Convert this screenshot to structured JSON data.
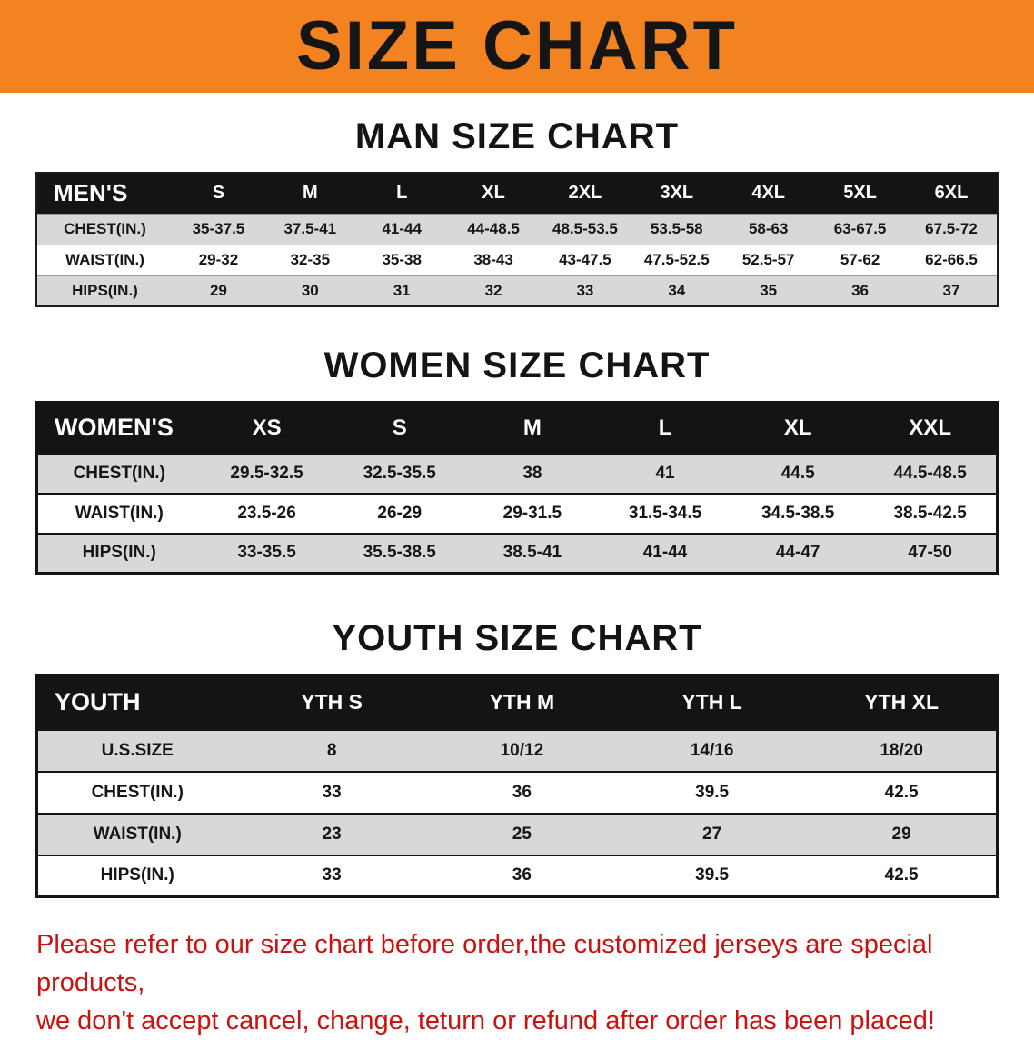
{
  "colors": {
    "banner_bg": "#f28320",
    "notice_text": "#cc1111",
    "header_row_bg": "#141414",
    "stripe_row_bg": "#d8d8d8"
  },
  "banner": {
    "title": "SIZE CHART"
  },
  "men": {
    "title": "MAN SIZE CHART",
    "header": [
      "MEN'S",
      "S",
      "M",
      "L",
      "XL",
      "2XL",
      "3XL",
      "4XL",
      "5XL",
      "6XL"
    ],
    "rows": [
      [
        "CHEST(IN.)",
        "35-37.5",
        "37.5-41",
        "41-44",
        "44-48.5",
        "48.5-53.5",
        "53.5-58",
        "58-63",
        "63-67.5",
        "67.5-72"
      ],
      [
        "WAIST(IN.)",
        "29-32",
        "32-35",
        "35-38",
        "38-43",
        "43-47.5",
        "47.5-52.5",
        "52.5-57",
        "57-62",
        "62-66.5"
      ],
      [
        "HIPS(IN.)",
        "29",
        "30",
        "31",
        "32",
        "33",
        "34",
        "35",
        "36",
        "37"
      ]
    ]
  },
  "women": {
    "title": "WOMEN SIZE CHART",
    "header": [
      "WOMEN'S",
      "XS",
      "S",
      "M",
      "L",
      "XL",
      "XXL"
    ],
    "rows": [
      [
        "CHEST(IN.)",
        "29.5-32.5",
        "32.5-35.5",
        "38",
        "41",
        "44.5",
        "44.5-48.5"
      ],
      [
        "WAIST(IN.)",
        "23.5-26",
        "26-29",
        "29-31.5",
        "31.5-34.5",
        "34.5-38.5",
        "38.5-42.5"
      ],
      [
        "HIPS(IN.)",
        "33-35.5",
        "35.5-38.5",
        "38.5-41",
        "41-44",
        "44-47",
        "47-50"
      ]
    ]
  },
  "youth": {
    "title": "YOUTH SIZE CHART",
    "header": [
      "YOUTH",
      "YTH S",
      "YTH M",
      "YTH L",
      "YTH XL"
    ],
    "rows": [
      [
        "U.S.SIZE",
        "8",
        "10/12",
        "14/16",
        "18/20"
      ],
      [
        "CHEST(IN.)",
        "33",
        "36",
        "39.5",
        "42.5"
      ],
      [
        "WAIST(IN.)",
        "23",
        "25",
        "27",
        "29"
      ],
      [
        "HIPS(IN.)",
        "33",
        "36",
        "39.5",
        "42.5"
      ]
    ]
  },
  "notice": {
    "line1": "Please refer to our size chart before order,the customized jerseys are special products,",
    "line2": "we don't accept cancel, change, teturn or refund after order has been placed!"
  }
}
